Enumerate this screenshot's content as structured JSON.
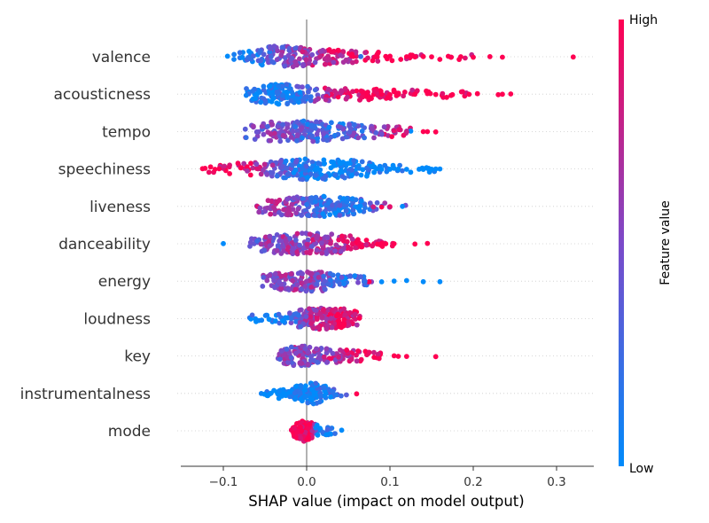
{
  "chart_data": {
    "type": "scatter",
    "subtype": "beeswarm",
    "title": "",
    "xlabel": "SHAP value (impact on model output)",
    "xlim": [
      -0.15,
      0.34
    ],
    "xticks": [
      -0.1,
      0.0,
      0.1,
      0.2,
      0.3
    ],
    "xtick_labels": [
      "−0.1",
      "0.0",
      "0.1",
      "0.2",
      "0.3"
    ],
    "grid": false,
    "colorbar": {
      "label": "Feature value",
      "high_label": "High",
      "low_label": "Low",
      "low_color": "#008bfb",
      "mid_color": "#7c4ac9",
      "high_color": "#ff0052"
    },
    "features": [
      {
        "name": "valence",
        "profile": [
          [
            -0.09,
            0.1
          ],
          [
            -0.06,
            0.4
          ],
          [
            -0.04,
            1.0
          ],
          [
            -0.025,
            1.0
          ],
          [
            0.0,
            0.75
          ],
          [
            0.03,
            0.45
          ],
          [
            0.06,
            0.3
          ],
          [
            0.1,
            0.15
          ],
          [
            0.14,
            0.12
          ],
          [
            0.2,
            0.05
          ]
        ],
        "color_profile": [
          [
            -0.07,
            0.1
          ],
          [
            -0.03,
            0.5
          ],
          [
            0.0,
            0.6
          ],
          [
            0.04,
            0.8
          ],
          [
            0.1,
            1.0
          ]
        ],
        "n": 210,
        "outliers": [
          [
            0.32,
            1.0
          ],
          [
            0.235,
            1.0
          ],
          [
            0.22,
            1.0
          ],
          [
            0.2,
            1.0
          ],
          [
            0.185,
            1.0
          ],
          [
            0.17,
            1.0
          ],
          [
            0.15,
            1.0
          ],
          [
            0.14,
            1.0
          ],
          [
            0.13,
            1.0
          ],
          [
            0.12,
            1.0
          ],
          [
            0.095,
            1.0
          ],
          [
            0.065,
            0.2
          ],
          [
            -0.095,
            0.0
          ]
        ]
      },
      {
        "name": "acousticness",
        "profile": [
          [
            -0.075,
            0.3
          ],
          [
            -0.05,
            0.8
          ],
          [
            -0.03,
            1.0
          ],
          [
            -0.01,
            0.75
          ],
          [
            0.01,
            0.5
          ],
          [
            0.04,
            0.35
          ],
          [
            0.07,
            0.3
          ],
          [
            0.1,
            0.18
          ],
          [
            0.14,
            0.12
          ],
          [
            0.2,
            0.06
          ]
        ],
        "color_profile": [
          [
            -0.07,
            0.02
          ],
          [
            -0.02,
            0.08
          ],
          [
            0.0,
            0.3
          ],
          [
            0.02,
            0.7
          ],
          [
            0.05,
            1.0
          ]
        ],
        "n": 230,
        "outliers": [
          [
            0.245,
            1.0
          ],
          [
            0.235,
            1.0
          ],
          [
            0.23,
            1.0
          ],
          [
            0.205,
            1.0
          ],
          [
            0.195,
            1.0
          ],
          [
            0.175,
            1.0
          ],
          [
            0.155,
            1.0
          ],
          [
            0.145,
            1.0
          ],
          [
            0.13,
            1.0
          ],
          [
            0.11,
            1.0
          ],
          [
            0.1,
            1.0
          ],
          [
            0.09,
            1.0
          ]
        ]
      },
      {
        "name": "tempo",
        "profile": [
          [
            -0.08,
            0.2
          ],
          [
            -0.06,
            0.6
          ],
          [
            -0.04,
            0.85
          ],
          [
            -0.02,
            0.9
          ],
          [
            0.0,
            1.0
          ],
          [
            0.02,
            0.8
          ],
          [
            0.05,
            0.55
          ],
          [
            0.08,
            0.45
          ],
          [
            0.1,
            0.25
          ],
          [
            0.13,
            0.1
          ]
        ],
        "color_profile": [
          [
            -0.08,
            0.45
          ],
          [
            -0.03,
            0.5
          ],
          [
            0.0,
            0.3
          ],
          [
            0.03,
            0.25
          ],
          [
            0.07,
            0.35
          ],
          [
            0.1,
            0.8
          ],
          [
            0.13,
            0.9
          ]
        ],
        "n": 220,
        "outliers": [
          [
            0.155,
            1.0
          ],
          [
            0.145,
            1.0
          ],
          [
            0.14,
            1.0
          ],
          [
            0.125,
            0.0
          ],
          [
            0.12,
            0.8
          ],
          [
            0.105,
            0.0
          ],
          [
            0.105,
            0.9
          ]
        ]
      },
      {
        "name": "speechiness",
        "profile": [
          [
            -0.13,
            0.05
          ],
          [
            -0.1,
            0.2
          ],
          [
            -0.07,
            0.4
          ],
          [
            -0.05,
            0.5
          ],
          [
            -0.03,
            0.7
          ],
          [
            -0.01,
            0.95
          ],
          [
            0.01,
            1.0
          ],
          [
            0.03,
            0.9
          ],
          [
            0.05,
            0.7
          ],
          [
            0.07,
            0.5
          ],
          [
            0.09,
            0.15
          ],
          [
            0.12,
            0.12
          ],
          [
            0.16,
            0.1
          ]
        ],
        "color_profile": [
          [
            -0.13,
            1.0
          ],
          [
            -0.07,
            0.9
          ],
          [
            -0.04,
            0.5
          ],
          [
            -0.01,
            0.15
          ],
          [
            0.02,
            0.05
          ],
          [
            0.1,
            0.0
          ]
        ],
        "n": 260,
        "outliers": [
          [
            0.16,
            0.0
          ],
          [
            0.155,
            0.0
          ],
          [
            0.15,
            0.0
          ],
          [
            0.145,
            0.0
          ],
          [
            0.14,
            0.0
          ],
          [
            0.135,
            0.0
          ],
          [
            0.12,
            0.0
          ],
          [
            0.11,
            0.0
          ],
          [
            0.1,
            0.0
          ],
          [
            0.09,
            0.0
          ],
          [
            -0.125,
            1.0
          ],
          [
            -0.11,
            1.0
          ],
          [
            -0.105,
            1.0
          ]
        ]
      },
      {
        "name": "liveness",
        "profile": [
          [
            -0.06,
            0.3
          ],
          [
            -0.04,
            0.6
          ],
          [
            -0.02,
            0.7
          ],
          [
            0.0,
            1.0
          ],
          [
            0.02,
            0.9
          ],
          [
            0.04,
            0.75
          ],
          [
            0.06,
            0.55
          ],
          [
            0.08,
            0.3
          ],
          [
            0.1,
            0.1
          ],
          [
            0.12,
            0.08
          ]
        ],
        "color_profile": [
          [
            -0.06,
            0.65
          ],
          [
            -0.03,
            0.6
          ],
          [
            0.0,
            0.4
          ],
          [
            0.03,
            0.2
          ],
          [
            0.06,
            0.1
          ],
          [
            0.09,
            0.5
          ]
        ],
        "n": 210,
        "outliers": [
          [
            0.115,
            0.0
          ],
          [
            0.1,
            0.9
          ],
          [
            0.09,
            1.0
          ],
          [
            0.08,
            0.8
          ]
        ]
      },
      {
        "name": "danceability",
        "profile": [
          [
            -0.07,
            0.25
          ],
          [
            -0.05,
            0.6
          ],
          [
            -0.03,
            0.85
          ],
          [
            -0.01,
            0.95
          ],
          [
            0.01,
            1.0
          ],
          [
            0.03,
            0.85
          ],
          [
            0.05,
            0.65
          ],
          [
            0.07,
            0.35
          ],
          [
            0.09,
            0.2
          ],
          [
            0.11,
            0.1
          ]
        ],
        "color_profile": [
          [
            -0.07,
            0.45
          ],
          [
            -0.03,
            0.55
          ],
          [
            0.0,
            0.6
          ],
          [
            0.03,
            0.7
          ],
          [
            0.06,
            0.85
          ],
          [
            0.1,
            1.0
          ]
        ],
        "n": 230,
        "outliers": [
          [
            0.145,
            1.0
          ],
          [
            0.13,
            1.0
          ],
          [
            0.105,
            1.0
          ],
          [
            0.095,
            1.0
          ],
          [
            0.09,
            1.0
          ],
          [
            0.085,
            1.0
          ],
          [
            -0.1,
            0.0
          ]
        ]
      },
      {
        "name": "energy",
        "profile": [
          [
            -0.055,
            0.25
          ],
          [
            -0.035,
            0.6
          ],
          [
            -0.015,
            0.8
          ],
          [
            0.0,
            1.0
          ],
          [
            0.02,
            0.85
          ],
          [
            0.04,
            0.5
          ],
          [
            0.06,
            0.25
          ],
          [
            0.08,
            0.1
          ]
        ],
        "color_profile": [
          [
            -0.05,
            0.55
          ],
          [
            -0.02,
            0.6
          ],
          [
            0.0,
            0.55
          ],
          [
            0.02,
            0.45
          ],
          [
            0.04,
            0.2
          ],
          [
            0.07,
            0.3
          ]
        ],
        "n": 200,
        "outliers": [
          [
            0.16,
            0.0
          ],
          [
            0.14,
            0.0
          ],
          [
            0.12,
            0.0
          ],
          [
            0.105,
            0.0
          ],
          [
            0.09,
            0.0
          ],
          [
            0.075,
            1.0
          ],
          [
            0.07,
            0.2
          ]
        ]
      },
      {
        "name": "loudness",
        "profile": [
          [
            -0.075,
            0.1
          ],
          [
            -0.05,
            0.15
          ],
          [
            -0.03,
            0.25
          ],
          [
            -0.015,
            0.5
          ],
          [
            0.0,
            0.9
          ],
          [
            0.015,
            1.0
          ],
          [
            0.03,
            0.95
          ],
          [
            0.045,
            0.85
          ],
          [
            0.06,
            0.5
          ],
          [
            0.065,
            0.2
          ]
        ],
        "color_profile": [
          [
            -0.075,
            0.05
          ],
          [
            -0.03,
            0.1
          ],
          [
            -0.01,
            0.4
          ],
          [
            0.01,
            0.7
          ],
          [
            0.04,
            0.9
          ],
          [
            0.065,
            0.9
          ]
        ],
        "n": 210,
        "outliers": []
      },
      {
        "name": "key",
        "profile": [
          [
            -0.035,
            0.3
          ],
          [
            -0.02,
            0.7
          ],
          [
            -0.005,
            1.0
          ],
          [
            0.01,
            0.7
          ],
          [
            0.025,
            0.45
          ],
          [
            0.045,
            0.35
          ],
          [
            0.07,
            0.2
          ],
          [
            0.09,
            0.12
          ]
        ],
        "color_profile": [
          [
            -0.035,
            0.5
          ],
          [
            -0.01,
            0.55
          ],
          [
            0.01,
            0.5
          ],
          [
            0.03,
            0.7
          ],
          [
            0.06,
            0.9
          ],
          [
            0.1,
            1.0
          ]
        ],
        "n": 170,
        "outliers": [
          [
            0.155,
            1.0
          ],
          [
            0.12,
            1.0
          ],
          [
            0.11,
            1.0
          ],
          [
            0.105,
            1.0
          ]
        ]
      },
      {
        "name": "instrumentalness",
        "profile": [
          [
            -0.055,
            0.05
          ],
          [
            -0.035,
            0.2
          ],
          [
            -0.02,
            0.35
          ],
          [
            -0.005,
            0.6
          ],
          [
            0.005,
            1.0
          ],
          [
            0.015,
            0.85
          ],
          [
            0.025,
            0.35
          ],
          [
            0.04,
            0.1
          ],
          [
            0.05,
            0.05
          ]
        ],
        "color_profile": [
          [
            -0.055,
            0.0
          ],
          [
            -0.01,
            0.05
          ],
          [
            0.01,
            0.03
          ],
          [
            0.03,
            0.2
          ],
          [
            0.05,
            0.6
          ]
        ],
        "n": 150,
        "outliers": [
          [
            0.06,
            1.0
          ]
        ]
      },
      {
        "name": "mode",
        "profile": [
          [
            -0.02,
            0.1
          ],
          [
            -0.01,
            0.7
          ],
          [
            -0.005,
            1.0
          ],
          [
            0.0,
            0.9
          ],
          [
            0.008,
            0.5
          ],
          [
            0.015,
            0.2
          ],
          [
            0.025,
            0.15
          ],
          [
            0.035,
            0.1
          ]
        ],
        "color_profile": [
          [
            -0.02,
            1.0
          ],
          [
            0.0,
            1.0
          ],
          [
            0.006,
            0.9
          ],
          [
            0.012,
            0.1
          ],
          [
            0.04,
            0.0
          ]
        ],
        "n": 150,
        "outliers": [
          [
            0.042,
            0.0
          ]
        ]
      }
    ]
  }
}
